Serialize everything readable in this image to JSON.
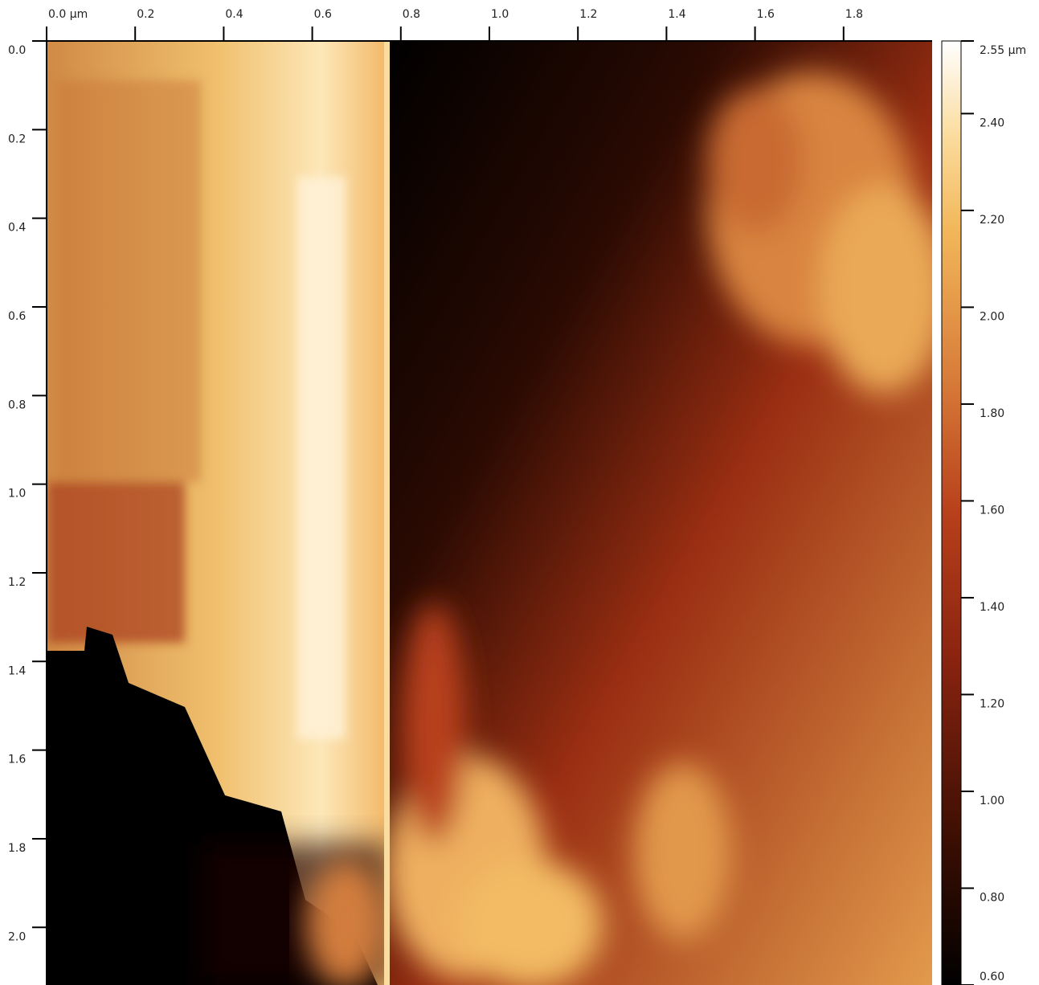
{
  "chart_data": {
    "type": "heatmap",
    "xlim": [
      0,
      2
    ],
    "ylim": [
      0,
      2.13
    ],
    "clim": [
      0.6,
      2.55
    ],
    "xticks": [
      {
        "value": 0,
        "label": "0.0 µm"
      },
      0.2,
      0.4,
      0.6,
      0.8,
      {
        "value": 1,
        "label": "1.0"
      },
      1.2,
      1.4,
      1.6,
      1.8
    ],
    "yticks": [
      {
        "value": 0,
        "label": "0.0"
      },
      0.2,
      0.4,
      0.6,
      0.8,
      {
        "value": 1,
        "label": "1.0"
      },
      1.2,
      1.4,
      1.6,
      1.8,
      {
        "value": 2,
        "label": "2.0"
      }
    ],
    "cticks": [
      {
        "value": 2.55,
        "label": "2.55 µm"
      },
      {
        "value": 2.4,
        "label": "2.40"
      },
      {
        "value": 2.2,
        "label": "2.20"
      },
      {
        "value": 2,
        "label": "2.00"
      },
      {
        "value": 1.8,
        "label": "1.80"
      },
      {
        "value": 1.6,
        "label": "1.60"
      },
      {
        "value": 1.4,
        "label": "1.40"
      },
      {
        "value": 1.2,
        "label": "1.20"
      },
      {
        "value": 1,
        "label": "1.00"
      },
      {
        "value": 0.8,
        "label": "0.80"
      },
      {
        "value": 0.6,
        "label": "0.60"
      }
    ]
  }
}
